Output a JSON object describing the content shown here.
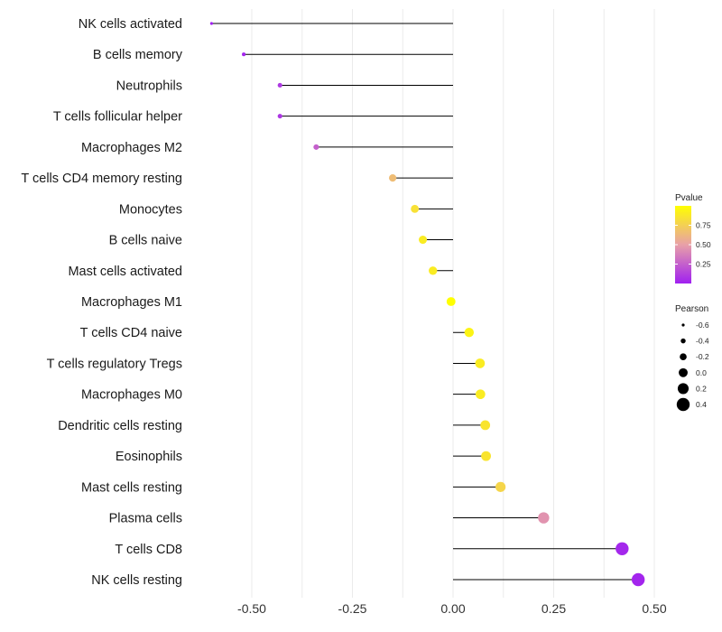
{
  "chart_data": {
    "type": "lollipop",
    "title": "",
    "xlabel": "",
    "ylabel": "",
    "xlim": [
      -0.62,
      0.53
    ],
    "xticks": [
      -0.5,
      -0.25,
      0.0,
      0.25,
      0.5
    ],
    "xtick_labels": [
      "-0.50",
      "-0.25",
      "0.00",
      "0.25",
      "0.50"
    ],
    "categories": [
      "NK cells activated",
      "B cells memory",
      "Neutrophils",
      "T cells follicular helper",
      "Macrophages M2",
      "T cells CD4 memory resting",
      "Monocytes",
      "B cells naive",
      "Mast cells activated",
      "Macrophages M1",
      "T cells CD4 naive",
      "T cells regulatory  Tregs ",
      "Macrophages M0",
      "Dendritic cells resting",
      "Eosinophils",
      "Mast cells resting",
      "Plasma cells",
      "T cells CD8",
      "NK cells resting"
    ],
    "pearson": [
      -0.6,
      -0.52,
      -0.43,
      -0.43,
      -0.34,
      -0.15,
      -0.095,
      -0.075,
      -0.05,
      -0.005,
      0.04,
      0.067,
      0.068,
      0.08,
      0.082,
      0.118,
      0.225,
      0.42,
      0.46
    ],
    "pvalue": [
      0.0,
      0.02,
      0.1,
      0.09,
      0.25,
      0.65,
      0.84,
      0.9,
      0.9,
      1.0,
      0.94,
      0.9,
      0.9,
      0.86,
      0.86,
      0.78,
      0.45,
      0.03,
      0.02
    ],
    "legend": {
      "color_title": "Pvalue",
      "color_ticks": [
        0.75,
        0.5,
        0.25
      ],
      "color_tick_labels": [
        "0.75",
        "0.50",
        "0.25"
      ],
      "color_range": [
        0.0,
        1.0
      ],
      "color_low": "#a020f0",
      "color_mid": "#e8a0a8",
      "color_high": "#ffff00",
      "size_title": "Pearson",
      "size_values": [
        -0.6,
        -0.4,
        -0.2,
        0.0,
        0.2,
        0.4
      ],
      "size_labels": [
        "-0.6",
        "-0.4",
        "-0.2",
        "0.0",
        "0.2",
        "0.4"
      ],
      "position": "right"
    },
    "grid": true
  }
}
